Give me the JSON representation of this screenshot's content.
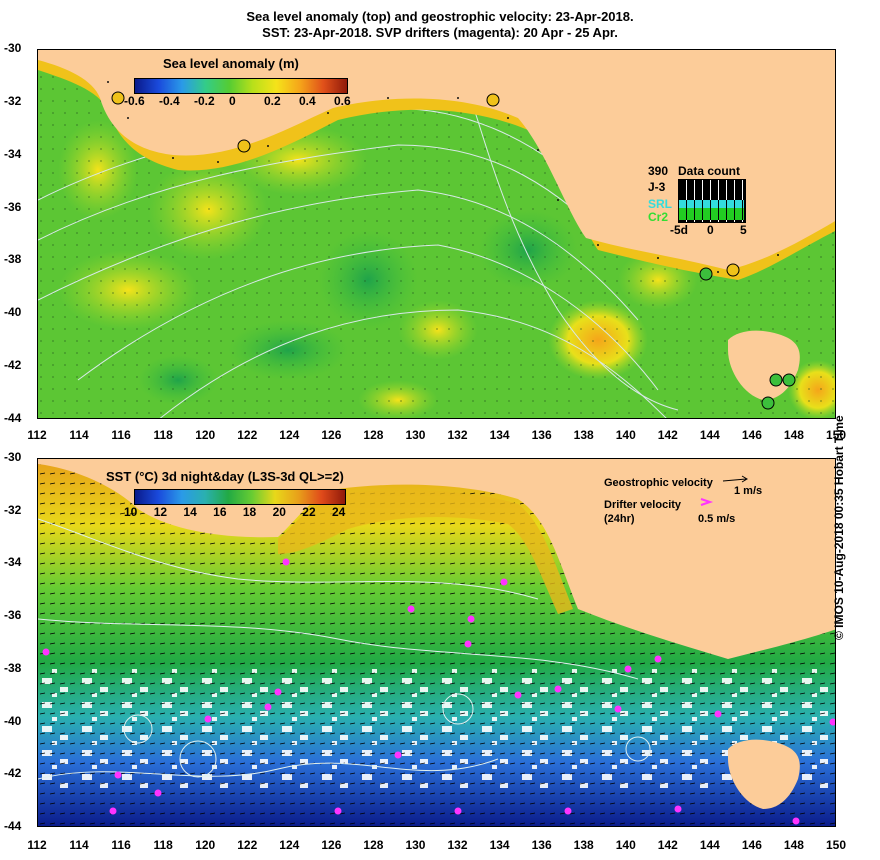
{
  "titles": {
    "line1": "Sea level anomaly (top) and geostrophic velocity: 23-Apr-2018.",
    "line2": "SST: 23-Apr-2018. SVP drifters (magenta): 20 Apr - 25 Apr."
  },
  "top_panel": {
    "colorbar_title": "Sea level anomaly (m)",
    "colorbar_labels": [
      "-0.6",
      "-0.4",
      "-0.2",
      "0",
      "0.2",
      "0.4",
      "0.6"
    ],
    "data_count": {
      "title": "Data count",
      "count_value": "390",
      "rows": [
        "J-3",
        "SRL",
        "Cr2"
      ],
      "axis": [
        "-5d",
        "0",
        "5"
      ]
    }
  },
  "bottom_panel": {
    "colorbar_title": "SST (°C) 3d night&day (L3S-3d QL>=2)",
    "colorbar_labels": [
      "10",
      "12",
      "14",
      "16",
      "18",
      "20",
      "22",
      "24"
    ],
    "geo_label": "Geostrophic velocity",
    "geo_scale": "1 m/s",
    "drifter_label": "Drifter velocity",
    "drifter_sub": "(24hr)",
    "drifter_scale": "0.5 m/s"
  },
  "axes": {
    "x_ticks": [
      "112",
      "114",
      "116",
      "118",
      "120",
      "122",
      "124",
      "126",
      "128",
      "130",
      "132",
      "134",
      "136",
      "138",
      "140",
      "142",
      "144",
      "146",
      "148",
      "150"
    ],
    "y_ticks": [
      "-30",
      "-32",
      "-34",
      "-36",
      "-38",
      "-40",
      "-42",
      "-44"
    ]
  },
  "credit": "© IMOS 10-Aug-2018 00:35 Hobart Time",
  "colors": {
    "land": "#fccc99",
    "ocean_green": "#55cc33",
    "contour": "#d8e8e8",
    "drifter": "#ff33ff"
  }
}
